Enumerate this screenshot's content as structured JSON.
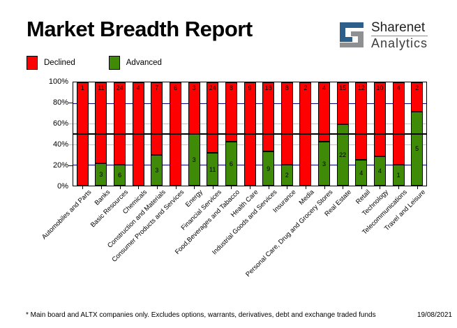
{
  "header": {
    "title": "Market Breadth Report",
    "logo": {
      "line1": "Sharenet",
      "line2": "Analytics",
      "icon_blue": "#2e5f8a",
      "icon_gray": "#8f9091"
    }
  },
  "legend": {
    "declined_label": "Declined",
    "advanced_label": "Advanced"
  },
  "colors": {
    "declined": "#ff0000",
    "advanced": "#3f8a06",
    "grid_navy": "#000080",
    "grid_gray": "#c0c0c0",
    "axis": "#000000"
  },
  "chart_data": {
    "type": "bar",
    "subtype": "100%-stacked-column",
    "title": "Market Breadth Report",
    "ylabel": "",
    "xlabel": "",
    "ylim": [
      0,
      100
    ],
    "y_ticks": [
      "100%",
      "80%",
      "60%",
      "40%",
      "20%",
      "0%"
    ],
    "gridlines": [
      {
        "percent": 80,
        "color": "#000080"
      },
      {
        "percent": 60,
        "color": "#c0c0c0"
      },
      {
        "percent": 50,
        "color": "#000000"
      },
      {
        "percent": 40,
        "color": "#c0c0c0"
      },
      {
        "percent": 20,
        "color": "#000080"
      }
    ],
    "legend_position": "top-left",
    "categories": [
      "Automobiles and Parts",
      "Banks",
      "Basic Resources",
      "Chemicals",
      "Construction and Materials",
      "Consumer Products and Services",
      "Energy",
      "Financial Services",
      "Food,Beverages and Tabacco",
      "Health Care",
      "Industrial Goods and Services",
      "Insurance",
      "Media",
      "Personal Care, Drug and Grocery Stores",
      "Real Estate",
      "Retail",
      "Technology",
      "Telecommunications",
      "Travel and Leisure"
    ],
    "series": [
      {
        "name": "Declined",
        "color": "#ff0000",
        "values": [
          1,
          11,
          24,
          4,
          7,
          6,
          3,
          24,
          8,
          9,
          18,
          8,
          2,
          4,
          15,
          12,
          10,
          4,
          2
        ]
      },
      {
        "name": "Advanced",
        "color": "#3f8a06",
        "values": [
          0,
          3,
          6,
          0,
          3,
          0,
          3,
          11,
          6,
          0,
          9,
          2,
          0,
          3,
          22,
          4,
          4,
          1,
          5
        ]
      }
    ]
  },
  "footer": {
    "note": "* Main board and ALTX companies only. Excludes options, warrants, derivatives, debt and exchange traded funds",
    "date": "19/08/2021"
  }
}
